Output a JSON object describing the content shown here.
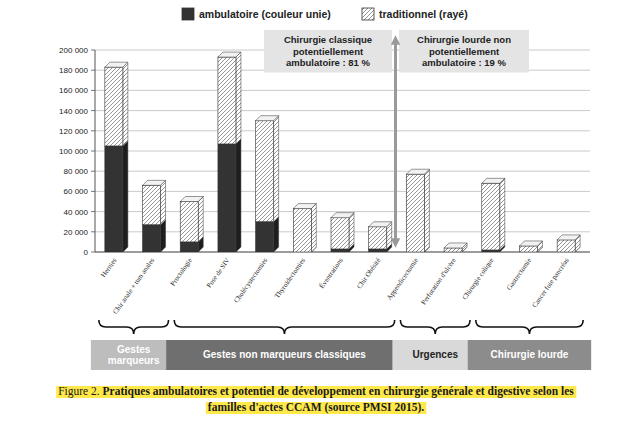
{
  "chart_data": {
    "type": "bar",
    "stacked": true,
    "grid": true,
    "figure_label": "Figure 2.",
    "title": "Pratiques ambulatoires et potentiel de développement en chirurgie générale et digestive selon les familles d'actes CCAM (source PMSI 2015).",
    "categories": [
      "Hernies",
      "Chir anale + tum anales",
      "Proctologie",
      "Pose de SIV",
      "Cholécystectomies",
      "Thyroïdectomies",
      "Éventrations",
      "Chir Obésité",
      "Appendicectomie",
      "Perforation d'ulcère",
      "Chirurgie colique",
      "Gastrectomie",
      "Cancer foie pancréas"
    ],
    "series": [
      {
        "name": "ambulatoire (couleur unie)",
        "color": "#333333",
        "values": [
          105000,
          27000,
          10000,
          107000,
          30000,
          0,
          3000,
          3000,
          0,
          0,
          2000,
          0,
          0
        ]
      },
      {
        "name": "traditionnel (rayé)",
        "color": "#8a8a8a",
        "values": [
          78000,
          39000,
          40000,
          86000,
          100000,
          43000,
          31000,
          22000,
          77000,
          4000,
          66000,
          6000,
          12000
        ]
      }
    ],
    "ylim": [
      0,
      200000
    ],
    "yticks": [
      0,
      {
        "value": 20000,
        "label": "20 000"
      },
      {
        "value": 40000,
        "label": "40 000"
      },
      {
        "value": 60000,
        "label": "60 000"
      },
      {
        "value": 80000,
        "label": "80 000"
      },
      {
        "value": 100000,
        "label": "100 000"
      },
      {
        "value": 120000,
        "label": "120 000"
      },
      {
        "value": 140000,
        "label": "140 000"
      },
      {
        "value": 160000,
        "label": "160 000"
      },
      {
        "value": 180000,
        "label": "180 000"
      },
      {
        "value": 200000,
        "label": "200 000"
      }
    ],
    "annotations": [
      {
        "lines": [
          "Chirurgie classique",
          "potentiellement",
          "ambulatoire : 81 %"
        ]
      },
      {
        "lines": [
          "Chirurgie lourde non",
          "potentiellement",
          "ambulatoire : 19 %"
        ]
      }
    ],
    "groups": [
      {
        "label": "Gestes marqueurs",
        "categories": [
          "Hernies",
          "Chir anale + tum anales"
        ]
      },
      {
        "label": "Gestes non marqueurs classiques",
        "categories": [
          "Proctologie",
          "Pose de SIV",
          "Cholécystectomies",
          "Thyroïdectomies",
          "Éventrations",
          "Chir Obésité"
        ]
      },
      {
        "label": "Urgences",
        "categories": [
          "Appendicectomie",
          "Perforation d'ulcère"
        ]
      },
      {
        "label": "Chirurgie lourde",
        "categories": [
          "Chirurgie colique",
          "Gastrectomie",
          "Cancer foie pancréas"
        ]
      }
    ]
  }
}
